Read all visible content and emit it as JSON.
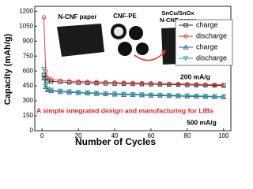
{
  "chart_data": {
    "type": "line",
    "xlabel": "Number of Cycles",
    "ylabel": "Capacity (mAh/g)",
    "x": [
      1,
      2,
      3,
      5,
      10,
      15,
      20,
      25,
      30,
      35,
      40,
      45,
      50,
      55,
      60,
      65,
      70,
      75,
      80,
      85,
      90,
      95,
      100
    ],
    "series": [
      {
        "name": "charge",
        "color": "#222222",
        "marker": "square",
        "values": [
          560,
          530,
          500,
          495,
          490,
          485,
          482,
          480,
          478,
          475,
          473,
          472,
          470,
          468,
          466,
          465,
          463,
          462,
          460,
          458,
          457,
          455,
          453
        ]
      },
      {
        "name": "discharge",
        "color": "#e03030",
        "marker": "circle",
        "values": [
          1140,
          600,
          530,
          515,
          505,
          498,
          495,
          492,
          490,
          488,
          485,
          483,
          481,
          479,
          477,
          475,
          473,
          471,
          469,
          467,
          465,
          463,
          461
        ]
      },
      {
        "name": "charge",
        "color": "#2a4fa0",
        "marker": "triangle",
        "values": [
          530,
          440,
          410,
          400,
          390,
          385,
          380,
          376,
          372,
          368,
          365,
          362,
          360,
          358,
          355,
          352,
          350,
          348,
          346,
          344,
          342,
          340,
          338
        ]
      },
      {
        "name": "discharge",
        "color": "#2aa08c",
        "marker": "triangle-down",
        "values": [
          620,
          450,
          420,
          410,
          400,
          394,
          388,
          384,
          380,
          376,
          373,
          370,
          368,
          365,
          362,
          360,
          357,
          355,
          353,
          351,
          349,
          347,
          345
        ]
      }
    ],
    "xlim": [
      -4,
      104
    ],
    "xticks": [
      0,
      20,
      40,
      60,
      80,
      100
    ],
    "ylim": [
      0,
      1250
    ],
    "yticks": [
      0,
      150,
      300,
      450,
      600,
      750,
      900,
      1050,
      1200
    ],
    "legend": "upper right",
    "annotations": [
      "200 mA/g",
      "500 mA/g",
      "A simple integrated design and manufacturing for LIBs"
    ],
    "inset_labels": [
      "N-CNF paper",
      "CNF-PE",
      "SnCu/SnOx",
      "N-CNF paper"
    ]
  }
}
